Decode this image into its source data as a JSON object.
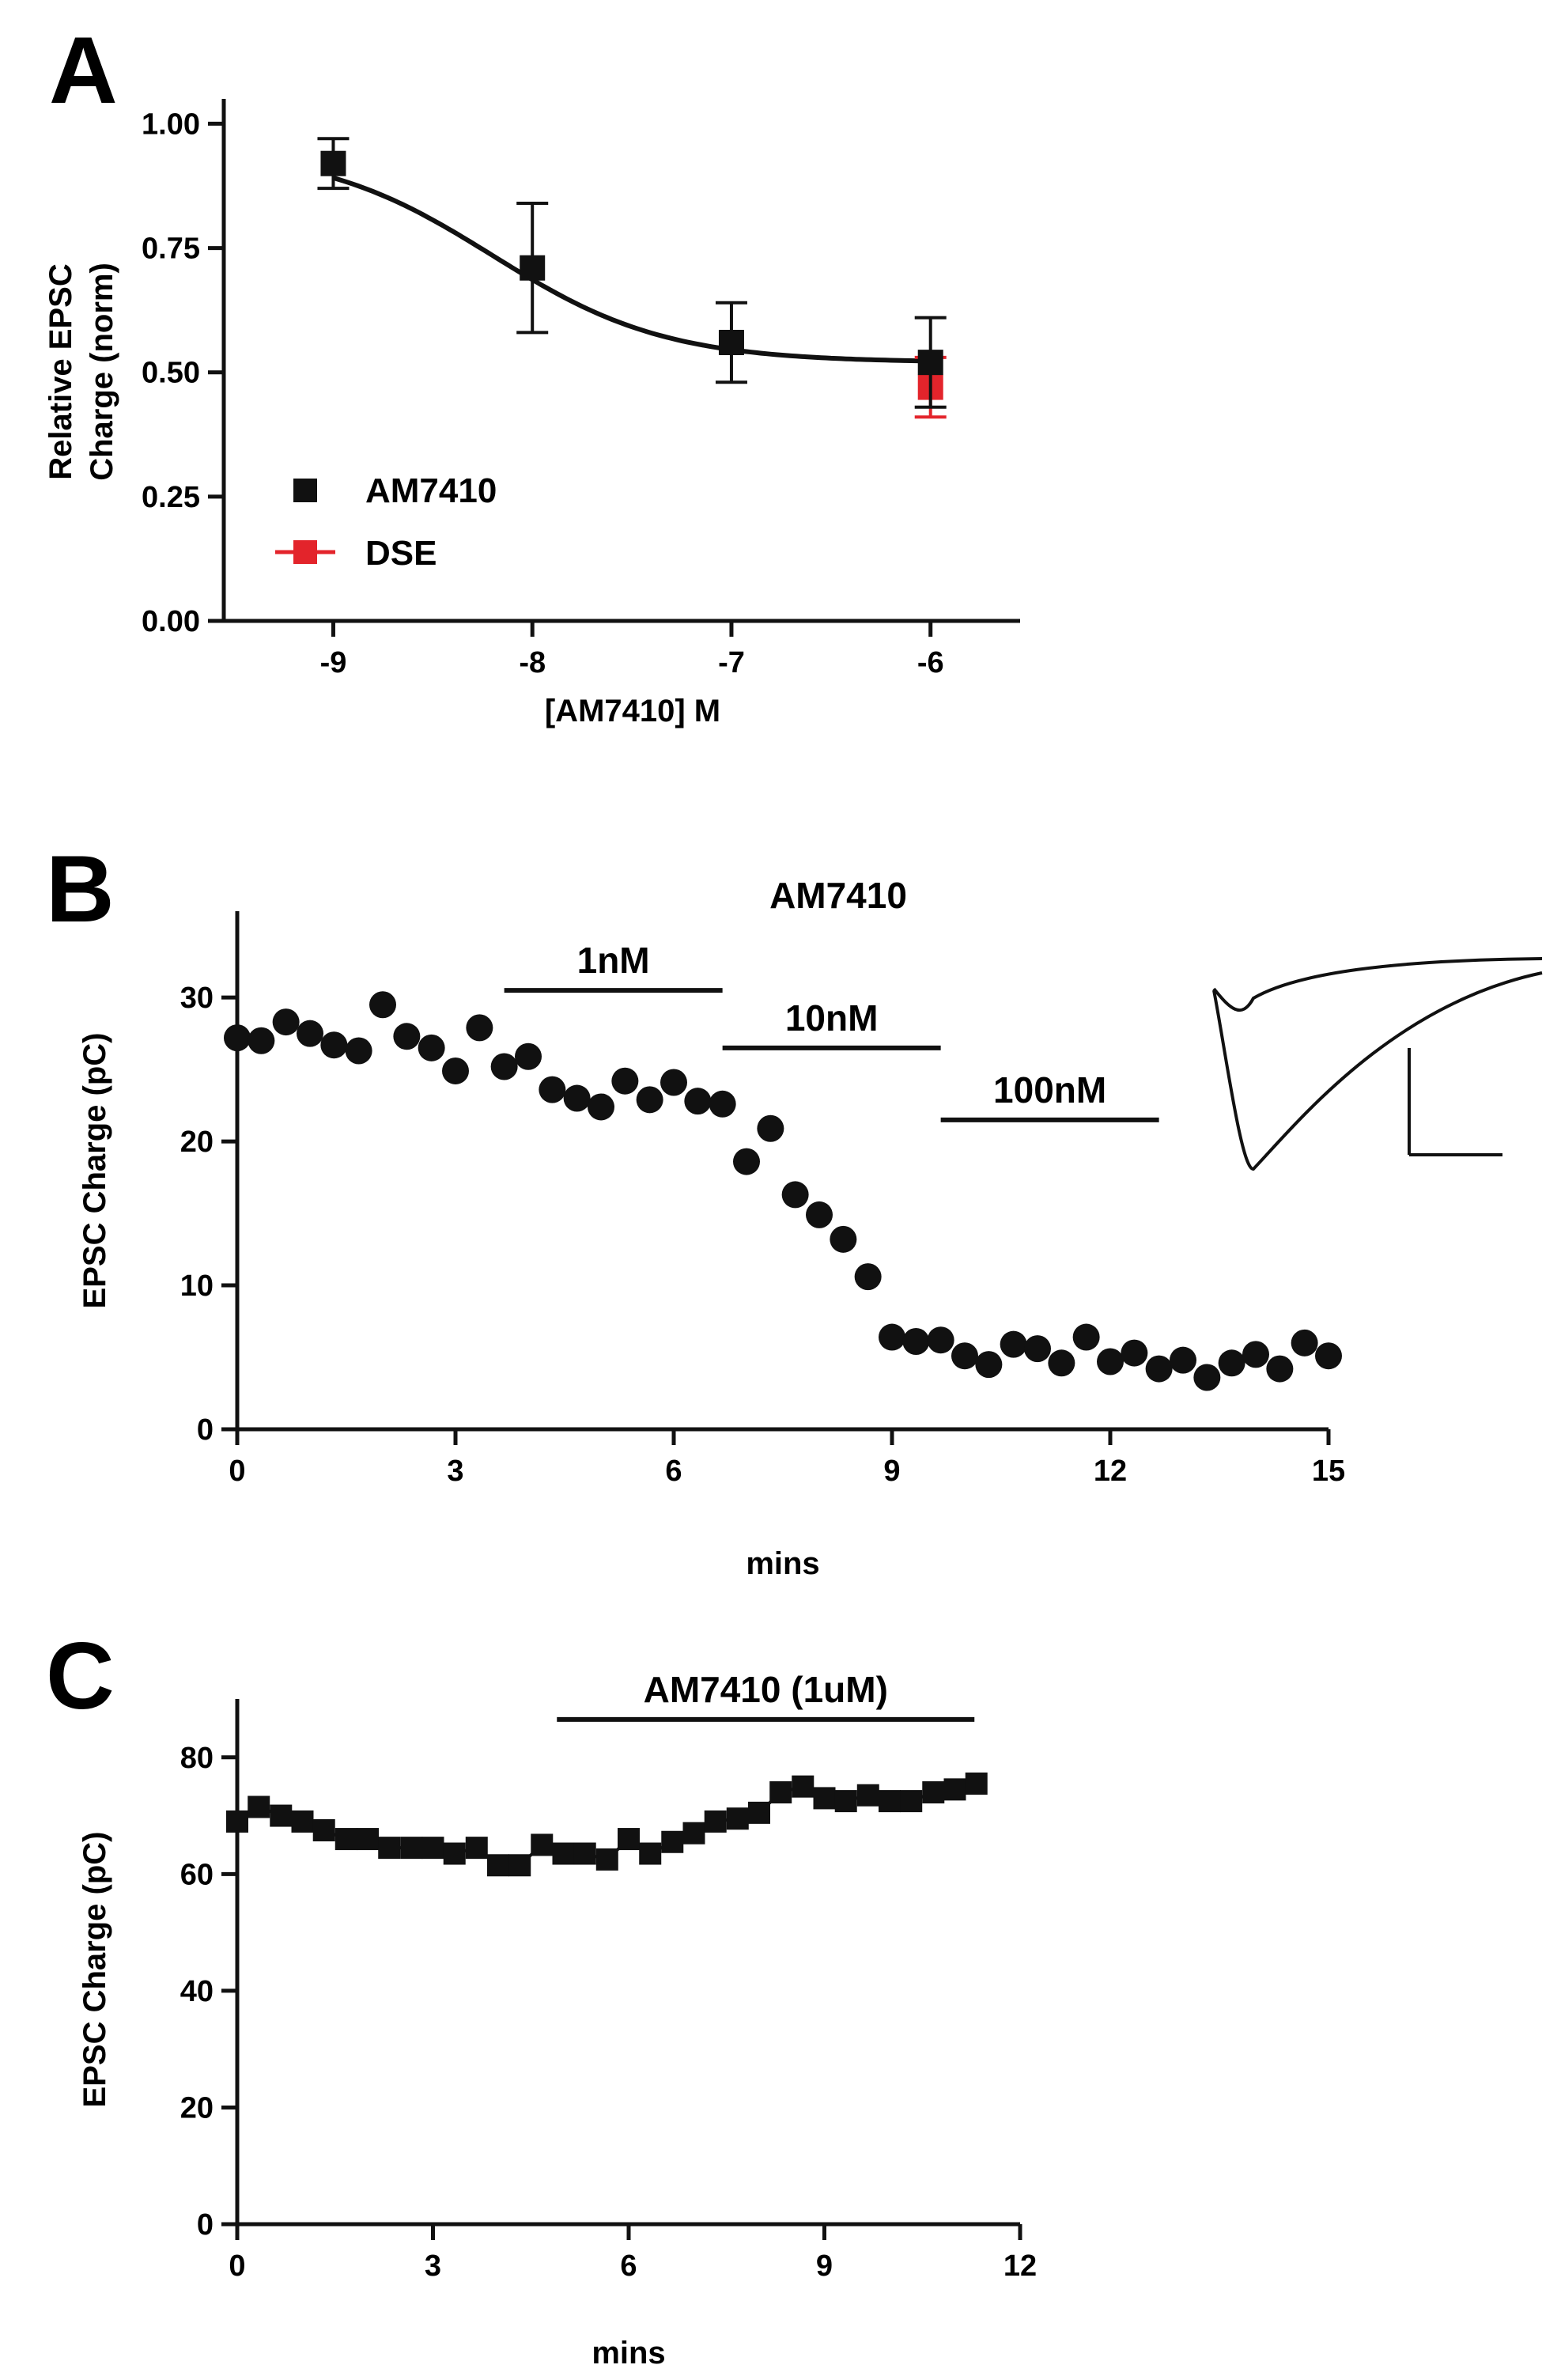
{
  "chart_data": [
    {
      "panel": "A",
      "type": "line",
      "xlabel": "[AM7410] M",
      "ylabel": [
        "Relative EPSC",
        "Charge (norm)"
      ],
      "xlim": [
        -9.55,
        -5.55
      ],
      "ylim": [
        0,
        1.05
      ],
      "xticks": [
        -9,
        -8,
        -7,
        -6
      ],
      "xtick_labels": [
        "-9",
        "-8",
        "-7",
        "-6"
      ],
      "yticks": [
        0,
        0.25,
        0.5,
        0.75,
        1.0
      ],
      "ytick_labels": [
        "0.00",
        "0.25",
        "0.50",
        "0.75",
        "1.00"
      ],
      "fit": {
        "kind": "sigmoid",
        "top": 0.95,
        "bottom": 0.52,
        "logEC50": -8.2,
        "hill": 1
      },
      "series": [
        {
          "name": "AM7410",
          "color": "#111111",
          "marker": "square",
          "x": [
            -9,
            -8,
            -7,
            -6
          ],
          "y": [
            0.92,
            0.71,
            0.56,
            0.52
          ],
          "err": [
            0.05,
            0.13,
            0.08,
            0.09
          ]
        },
        {
          "name": "DSE",
          "color": "#e3242b",
          "marker": "square",
          "x": [
            -6
          ],
          "y": [
            0.47
          ],
          "err": [
            0.06
          ]
        }
      ],
      "legend": {
        "placement": "bottom-left",
        "entries": [
          "AM7410",
          "DSE"
        ]
      }
    },
    {
      "panel": "B",
      "type": "scatter",
      "title": "AM7410",
      "xlabel": "mins",
      "ylabel": "EPSC Charge (pC)",
      "xlim": [
        0,
        15
      ],
      "ylim": [
        0,
        36
      ],
      "xticks": [
        0,
        3,
        6,
        9,
        12,
        15
      ],
      "yticks": [
        0,
        10,
        20,
        30
      ],
      "marker": "circle",
      "x": [
        0,
        0.33,
        0.67,
        1.0,
        1.33,
        1.67,
        2.0,
        2.33,
        2.67,
        3.0,
        3.33,
        3.67,
        4.0,
        4.33,
        4.67,
        5.0,
        5.33,
        5.67,
        6.0,
        6.33,
        6.67,
        7.0,
        7.33,
        7.67,
        8.0,
        8.33,
        8.67,
        9.0,
        9.33,
        9.67,
        10.0,
        10.33,
        10.67,
        11.0,
        11.33,
        11.67,
        12.0,
        12.33,
        12.67,
        13.0,
        13.33,
        13.67,
        14.0,
        14.33,
        14.67,
        15.0
      ],
      "y": [
        27.2,
        27.0,
        28.3,
        27.5,
        26.7,
        26.3,
        29.5,
        27.3,
        26.5,
        24.9,
        27.9,
        25.2,
        25.9,
        23.6,
        23.0,
        22.4,
        24.2,
        22.9,
        24.1,
        22.8,
        22.6,
        18.6,
        20.9,
        16.3,
        14.9,
        13.2,
        10.6,
        6.4,
        6.1,
        6.2,
        5.1,
        4.5,
        5.9,
        5.6,
        4.6,
        6.4,
        4.7,
        5.3,
        4.2,
        4.8,
        3.6,
        4.6,
        5.2,
        4.2,
        6.0,
        5.1
      ],
      "bars": [
        {
          "label": "1nM",
          "x": [
            3.67,
            6.67
          ],
          "y": 30.5
        },
        {
          "label": "10nM",
          "x": [
            6.67,
            9.67
          ],
          "y": 26.5
        },
        {
          "label": "100nM",
          "x": [
            9.67,
            12.67
          ],
          "y": 21.5
        }
      ],
      "inset": "EPSC traces with scale bar"
    },
    {
      "panel": "C",
      "type": "line",
      "xlabel": "mins",
      "ylabel": "EPSC Charge (pC)",
      "xlim": [
        0,
        12
      ],
      "ylim": [
        0,
        90
      ],
      "xticks": [
        0,
        3,
        6,
        9,
        12
      ],
      "yticks": [
        0,
        20,
        40,
        60,
        80
      ],
      "marker": "square",
      "x": [
        0,
        0.33,
        0.67,
        1.0,
        1.33,
        1.67,
        2.0,
        2.33,
        2.67,
        3.0,
        3.33,
        3.67,
        4.0,
        4.33,
        4.67,
        5.0,
        5.33,
        5.67,
        6.0,
        6.33,
        6.67,
        7.0,
        7.33,
        7.67,
        8.0,
        8.33,
        8.67,
        9.0,
        9.33,
        9.67,
        10.0,
        10.33,
        10.67,
        11.0,
        11.33
      ],
      "y": [
        69,
        71.5,
        70,
        69,
        67.5,
        66,
        66,
        64.5,
        64.5,
        64.5,
        63.5,
        64.5,
        61.5,
        61.5,
        65,
        63.5,
        63.5,
        62.5,
        66,
        63.5,
        65.5,
        67,
        69,
        69.5,
        70.5,
        74,
        75,
        73,
        72.5,
        73.5,
        72.5,
        72.5,
        74,
        74.5,
        75.5
      ],
      "bars": [
        {
          "label": "AM7410 (1uM)",
          "x": [
            4.9,
            11.3
          ],
          "y": 86.5
        }
      ]
    }
  ],
  "panels": {
    "a": "A",
    "b": "B",
    "c": "C"
  },
  "colors": {
    "ink": "#111111",
    "dse": "#e3242b"
  }
}
